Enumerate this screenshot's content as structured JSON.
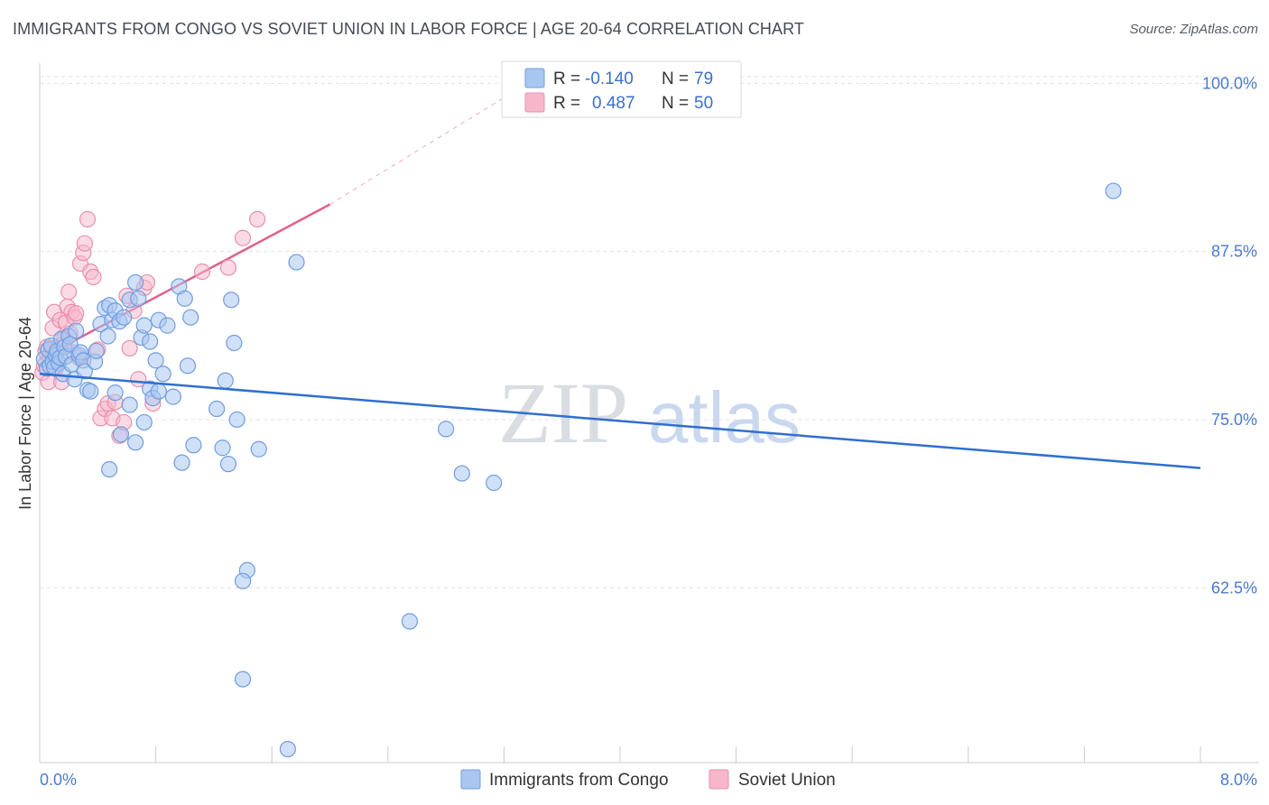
{
  "title": "IMMIGRANTS FROM CONGO VS SOVIET UNION IN LABOR FORCE | AGE 20-64 CORRELATION CHART",
  "source": "Source: ZipAtlas.com",
  "watermark": {
    "part1": "ZIP",
    "part2": "atlas"
  },
  "colors": {
    "congo_fill": "#a9c6f0",
    "congo_stroke": "#6f9de0",
    "congo_line": "#2f6fd0",
    "soviet_fill": "#f6b7cb",
    "soviet_stroke": "#ea8fad",
    "soviet_line": "#e0608e",
    "grid": "#dde1e6",
    "axis": "#c8ccd2",
    "label_blue": "#4a7bd0"
  },
  "legend": {
    "rows": [
      {
        "r_label": "R =",
        "r_value": "-0.140",
        "n_label": "N =",
        "n_value": "79"
      },
      {
        "r_label": "R =",
        "r_value": "0.487",
        "n_label": "N =",
        "n_value": "50"
      }
    ]
  },
  "bottom_legend": {
    "congo": "Immigrants from Congo",
    "soviet": "Soviet Union"
  },
  "chart_data": {
    "type": "scatter",
    "title": "IMMIGRANTS FROM CONGO VS SOVIET UNION IN LABOR FORCE | AGE 20-64 CORRELATION CHART",
    "xlabel": "",
    "ylabel": "In Labor Force | Age 20-64",
    "xlim": [
      0,
      8
    ],
    "ylim": [
      49.5,
      101.5
    ],
    "x_tick_labels": [
      "0.0%",
      "8.0%"
    ],
    "y_ticks": [
      62.5,
      75.0,
      87.5,
      100.0
    ],
    "y_tick_labels": [
      "62.5%",
      "75.0%",
      "87.5%",
      "100.0%"
    ],
    "grid": true,
    "legend_position": "top-center",
    "series": [
      {
        "name": "Immigrants from Congo",
        "r": -0.14,
        "n": 79,
        "trend": {
          "x0": 0.0,
          "y0": 78.4,
          "x1": 8.0,
          "y1": 71.4
        },
        "points": [
          [
            0.03,
            79.5
          ],
          [
            0.05,
            78.8
          ],
          [
            0.06,
            80.2
          ],
          [
            0.07,
            79.0
          ],
          [
            0.08,
            80.5
          ],
          [
            0.09,
            79.3
          ],
          [
            0.1,
            78.9
          ],
          [
            0.11,
            79.8
          ],
          [
            0.12,
            80.1
          ],
          [
            0.13,
            79.2
          ],
          [
            0.14,
            79.6
          ],
          [
            0.15,
            81.0
          ],
          [
            0.16,
            78.4
          ],
          [
            0.17,
            80.4
          ],
          [
            0.18,
            79.7
          ],
          [
            0.2,
            81.2
          ],
          [
            0.21,
            80.6
          ],
          [
            0.22,
            79.1
          ],
          [
            0.24,
            78.0
          ],
          [
            0.25,
            81.6
          ],
          [
            0.27,
            79.8
          ],
          [
            0.28,
            80.0
          ],
          [
            0.3,
            79.4
          ],
          [
            0.31,
            78.6
          ],
          [
            0.33,
            77.2
          ],
          [
            0.35,
            77.1
          ],
          [
            0.38,
            79.3
          ],
          [
            0.39,
            80.1
          ],
          [
            0.42,
            82.1
          ],
          [
            0.45,
            83.3
          ],
          [
            0.47,
            81.2
          ],
          [
            0.48,
            83.5
          ],
          [
            0.5,
            82.4
          ],
          [
            0.52,
            83.1
          ],
          [
            0.55,
            82.3
          ],
          [
            0.58,
            82.6
          ],
          [
            0.62,
            83.9
          ],
          [
            0.66,
            85.2
          ],
          [
            0.68,
            84.0
          ],
          [
            0.7,
            81.1
          ],
          [
            0.72,
            82.0
          ],
          [
            0.76,
            80.8
          ],
          [
            0.8,
            79.4
          ],
          [
            0.82,
            82.4
          ],
          [
            0.85,
            78.4
          ],
          [
            0.88,
            82.0
          ],
          [
            0.92,
            76.7
          ],
          [
            0.96,
            84.9
          ],
          [
            1.0,
            84.0
          ],
          [
            1.02,
            79.0
          ],
          [
            1.04,
            82.6
          ],
          [
            0.52,
            77.0
          ],
          [
            0.62,
            76.1
          ],
          [
            0.56,
            73.9
          ],
          [
            0.66,
            73.3
          ],
          [
            0.72,
            74.8
          ],
          [
            0.76,
            77.3
          ],
          [
            0.78,
            76.6
          ],
          [
            0.82,
            77.1
          ],
          [
            1.06,
            73.1
          ],
          [
            0.98,
            71.8
          ],
          [
            0.48,
            71.3
          ],
          [
            1.22,
            75.8
          ],
          [
            1.26,
            72.9
          ],
          [
            1.3,
            71.7
          ],
          [
            1.36,
            75.0
          ],
          [
            1.28,
            77.9
          ],
          [
            1.32,
            83.9
          ],
          [
            1.34,
            80.7
          ],
          [
            1.51,
            72.8
          ],
          [
            1.77,
            86.7
          ],
          [
            2.8,
            74.3
          ],
          [
            2.91,
            71.0
          ],
          [
            3.13,
            70.3
          ],
          [
            7.4,
            92.0
          ],
          [
            1.43,
            63.8
          ],
          [
            1.4,
            63.0
          ],
          [
            2.55,
            60.0
          ],
          [
            1.4,
            55.7
          ],
          [
            1.71,
            50.5
          ]
        ]
      },
      {
        "name": "Soviet Union",
        "r": 0.487,
        "n": 50,
        "trend": {
          "x0": 0.0,
          "y0": 79.5,
          "x1": 2.0,
          "y1": 91.0
        },
        "trend_dashed": {
          "x0": 2.0,
          "y0": 91.0,
          "x1": 3.3,
          "y1": 99.6
        },
        "points": [
          [
            0.02,
            78.5
          ],
          [
            0.03,
            79.0
          ],
          [
            0.04,
            80.1
          ],
          [
            0.05,
            80.4
          ],
          [
            0.06,
            77.8
          ],
          [
            0.07,
            79.6
          ],
          [
            0.08,
            80.3
          ],
          [
            0.09,
            81.8
          ],
          [
            0.1,
            83.0
          ],
          [
            0.11,
            78.8
          ],
          [
            0.12,
            80.0
          ],
          [
            0.13,
            79.2
          ],
          [
            0.14,
            82.4
          ],
          [
            0.15,
            77.8
          ],
          [
            0.16,
            80.6
          ],
          [
            0.17,
            81.0
          ],
          [
            0.18,
            82.2
          ],
          [
            0.19,
            83.4
          ],
          [
            0.2,
            84.5
          ],
          [
            0.21,
            81.4
          ],
          [
            0.22,
            83.0
          ],
          [
            0.23,
            80.0
          ],
          [
            0.24,
            82.6
          ],
          [
            0.25,
            82.9
          ],
          [
            0.27,
            79.6
          ],
          [
            0.28,
            86.6
          ],
          [
            0.3,
            87.4
          ],
          [
            0.31,
            88.1
          ],
          [
            0.33,
            89.9
          ],
          [
            0.35,
            86.0
          ],
          [
            0.37,
            85.6
          ],
          [
            0.4,
            80.2
          ],
          [
            0.42,
            75.1
          ],
          [
            0.45,
            75.8
          ],
          [
            0.47,
            76.2
          ],
          [
            0.5,
            75.1
          ],
          [
            0.52,
            76.3
          ],
          [
            0.55,
            73.8
          ],
          [
            0.58,
            74.8
          ],
          [
            0.6,
            84.2
          ],
          [
            0.62,
            80.3
          ],
          [
            0.65,
            83.1
          ],
          [
            0.68,
            78.0
          ],
          [
            0.72,
            84.8
          ],
          [
            0.74,
            85.2
          ],
          [
            0.78,
            76.2
          ],
          [
            1.12,
            86.0
          ],
          [
            1.3,
            86.3
          ],
          [
            1.4,
            88.5
          ],
          [
            1.5,
            89.9
          ]
        ]
      }
    ]
  }
}
